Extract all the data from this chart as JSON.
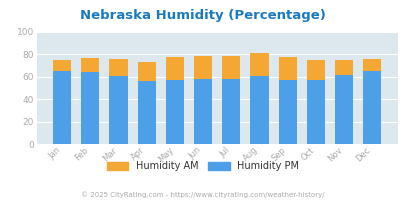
{
  "months": [
    "Jan",
    "Feb",
    "Mar",
    "Apr",
    "May",
    "Jun",
    "Jul",
    "Aug",
    "Sep",
    "Oct",
    "Nov",
    "Dec"
  ],
  "humidity_pm": [
    65,
    64,
    61,
    56,
    57,
    58,
    58,
    61,
    57,
    57,
    62,
    65
  ],
  "humidity_am": [
    10,
    13,
    15,
    17,
    21,
    21,
    21,
    20,
    21,
    18,
    13,
    11
  ],
  "color_pm": "#4d9fe8",
  "color_am": "#f5a733",
  "title": "Nebraska Humidity (Percentage)",
  "title_color": "#1a7abf",
  "fig_bg": "#ffffff",
  "plot_bg": "#dde8ee",
  "ylim": [
    0,
    100
  ],
  "yticks": [
    0,
    20,
    40,
    60,
    80,
    100
  ],
  "legend_am": "Humidity AM",
  "legend_pm": "Humidity PM",
  "legend_text_color": "#333333",
  "footer": "© 2025 CityRating.com - https://www.cityrating.com/weather-history/",
  "footer_color": "#aaaaaa",
  "tick_color": "#aaaaaa",
  "grid_color": "#ffffff",
  "bar_width": 0.65
}
